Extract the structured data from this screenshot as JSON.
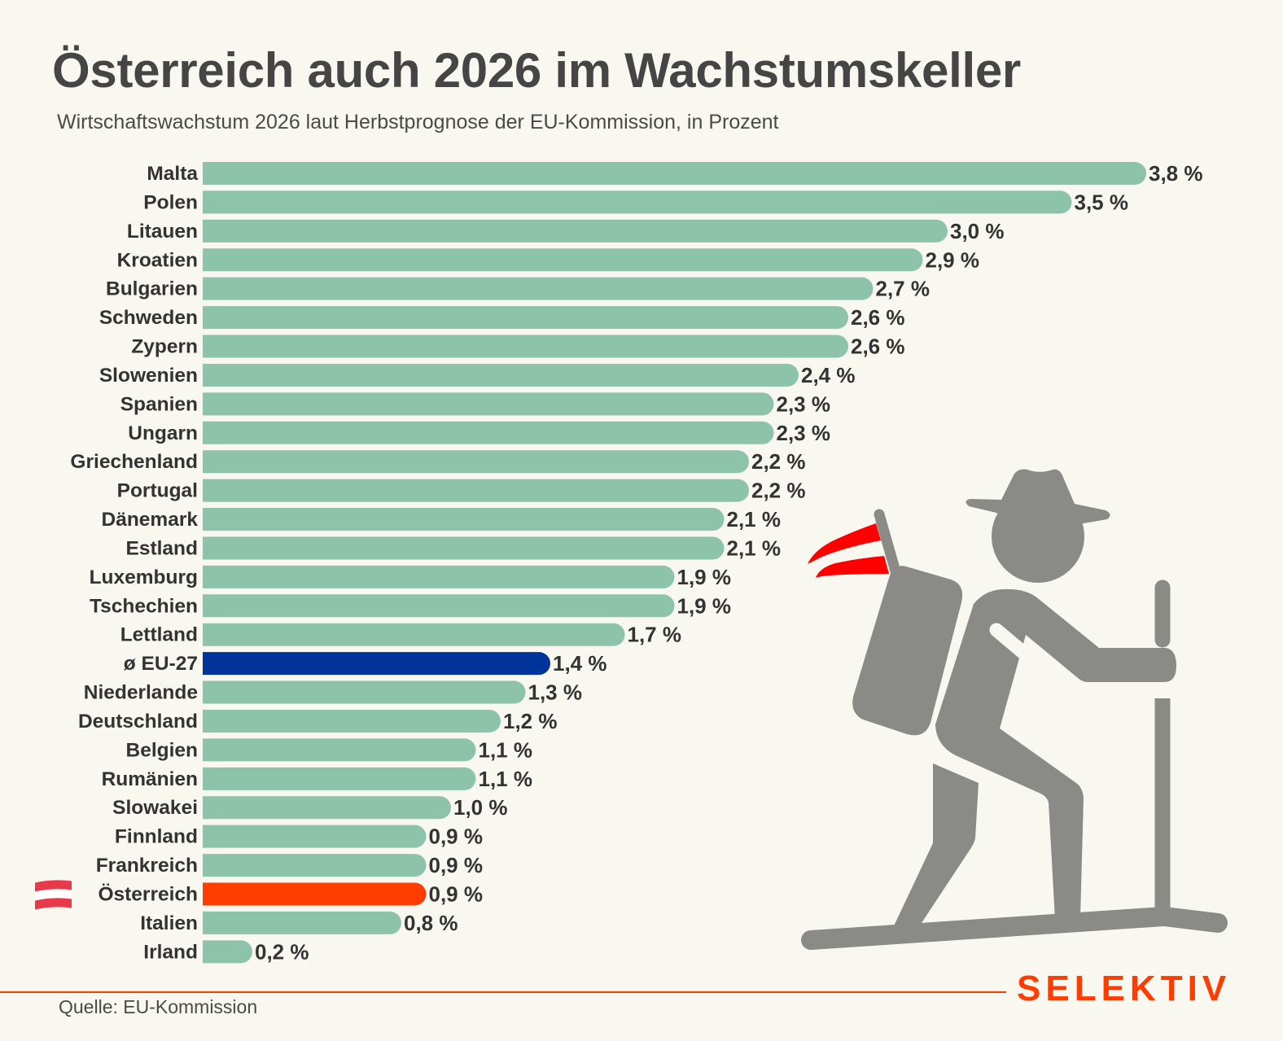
{
  "header": {
    "title": "Österreich auch 2026 im Wachstumskeller",
    "subtitle": "Wirtschaftswachstum 2026 laut Herbstprognose der EU-Kommission, in Prozent"
  },
  "footer": {
    "source": "Quelle: EU-Kommission",
    "logo": "SELEKTIV"
  },
  "illustration": {
    "icon": "hiker-with-austrian-flag-icon"
  },
  "colors": {
    "background": "#f8f7f0",
    "bar_default": "#8dc3aa",
    "bar_eu_average": "#00339a",
    "bar_austria": "#ff3d00",
    "accent": "#ff3d00",
    "flag_red": "#ff0000",
    "illustration_grey": "#8a8a86"
  },
  "chart_data": {
    "type": "bar",
    "orientation": "horizontal",
    "title": "Österreich auch 2026 im Wachstumskeller",
    "subtitle": "Wirtschaftswachstum 2026 laut Herbstprognose der EU-Kommission, in Prozent",
    "xlabel": "",
    "ylabel": "",
    "unit": "%",
    "grid": false,
    "xlim": [
      0,
      3.8
    ],
    "categories": [
      "Malta",
      "Polen",
      "Litauen",
      "Kroatien",
      "Bulgarien",
      "Schweden",
      "Zypern",
      "Slowenien",
      "Spanien",
      "Ungarn",
      "Griechenland",
      "Portugal",
      "Dänemark",
      "Estland",
      "Luxemburg",
      "Tschechien",
      "Lettland",
      "ø EU-27",
      "Niederlande",
      "Deutschland",
      "Belgien",
      "Rumänien",
      "Slowakei",
      "Finnland",
      "Frankreich",
      "Österreich",
      "Italien",
      "Irland"
    ],
    "values": [
      3.8,
      3.5,
      3.0,
      2.9,
      2.7,
      2.6,
      2.6,
      2.4,
      2.3,
      2.3,
      2.2,
      2.2,
      2.1,
      2.1,
      1.9,
      1.9,
      1.7,
      1.4,
      1.3,
      1.2,
      1.1,
      1.1,
      1.0,
      0.9,
      0.9,
      0.9,
      0.8,
      0.2
    ],
    "value_labels": [
      "3,8 %",
      "3,5 %",
      "3,0 %",
      "2,9 %",
      "2,7 %",
      "2,6 %",
      "2,6 %",
      "2,4 %",
      "2,3 %",
      "2,3 %",
      "2,2 %",
      "2,2 %",
      "2,1 %",
      "2,1 %",
      "1,9 %",
      "1,9 %",
      "1,7 %",
      "1,4 %",
      "1,3 %",
      "1,2 %",
      "1,1 %",
      "1,1 %",
      "1,0 %",
      "0,9 %",
      "0,9 %",
      "0,9 %",
      "0,8 %",
      "0,2 %"
    ],
    "highlights": {
      "ø EU-27": "eu_average",
      "Österreich": "austria"
    },
    "flag_marker": {
      "category": "Österreich",
      "icon": "austria-flag-icon"
    },
    "source": "Quelle: EU-Kommission"
  }
}
